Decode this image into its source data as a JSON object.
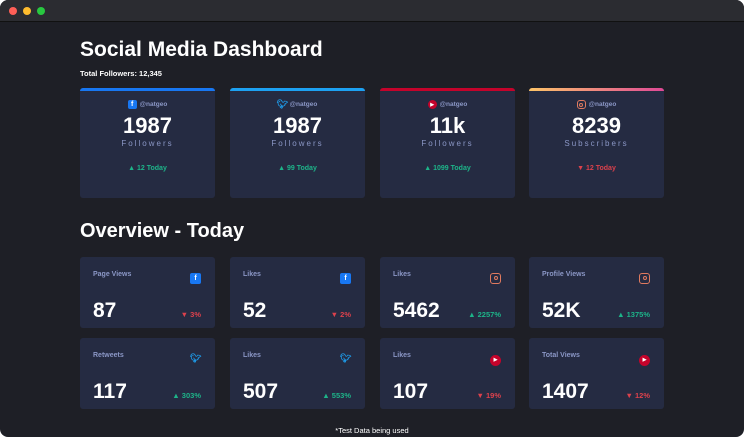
{
  "title": "Social Media Dashboard",
  "total_followers": "Total Followers: 12,345",
  "colors": {
    "facebook": "#1877f2",
    "twitter": "#1da1f2",
    "youtube": "#c4032b",
    "instagram": "#df5b8a",
    "up": "#1db489",
    "down": "#dc414c"
  },
  "top_cards": [
    {
      "platform": "facebook",
      "icon": "facebook-icon",
      "handle": "@natgeo",
      "count": "1987",
      "unit": "Followers",
      "change": "▲ 12 Today",
      "direction": "up"
    },
    {
      "platform": "twitter",
      "icon": "twitter-icon",
      "handle": "@natgeo",
      "count": "1987",
      "unit": "Followers",
      "change": "▲ 99 Today",
      "direction": "up"
    },
    {
      "platform": "youtube",
      "icon": "youtube-icon",
      "handle": "@natgeo",
      "count": "11k",
      "unit": "Followers",
      "change": "▲ 1099 Today",
      "direction": "up"
    },
    {
      "platform": "instagram",
      "icon": "instagram-icon",
      "handle": "@natgeo",
      "count": "8239",
      "unit": "Subscribers",
      "change": "▼ 12 Today",
      "direction": "down"
    }
  ],
  "overview_title": "Overview - Today",
  "overview": [
    {
      "label": "Page Views",
      "icon": "facebook-icon",
      "value": "87",
      "change": "▼ 3%",
      "direction": "down"
    },
    {
      "label": "Likes",
      "icon": "facebook-icon",
      "value": "52",
      "change": "▼ 2%",
      "direction": "down"
    },
    {
      "label": "Likes",
      "icon": "instagram-icon",
      "value": "5462",
      "change": "▲ 2257%",
      "direction": "up"
    },
    {
      "label": "Profile Views",
      "icon": "instagram-icon",
      "value": "52K",
      "change": "▲ 1375%",
      "direction": "up"
    },
    {
      "label": "Retweets",
      "icon": "twitter-icon",
      "value": "117",
      "change": "▲ 303%",
      "direction": "up"
    },
    {
      "label": "Likes",
      "icon": "twitter-icon",
      "value": "507",
      "change": "▲ 553%",
      "direction": "up"
    },
    {
      "label": "Likes",
      "icon": "youtube-icon",
      "value": "107",
      "change": "▼ 19%",
      "direction": "down"
    },
    {
      "label": "Total Views",
      "icon": "youtube-icon",
      "value": "1407",
      "change": "▼ 12%",
      "direction": "down"
    }
  ],
  "footer": "*Test Data being used"
}
